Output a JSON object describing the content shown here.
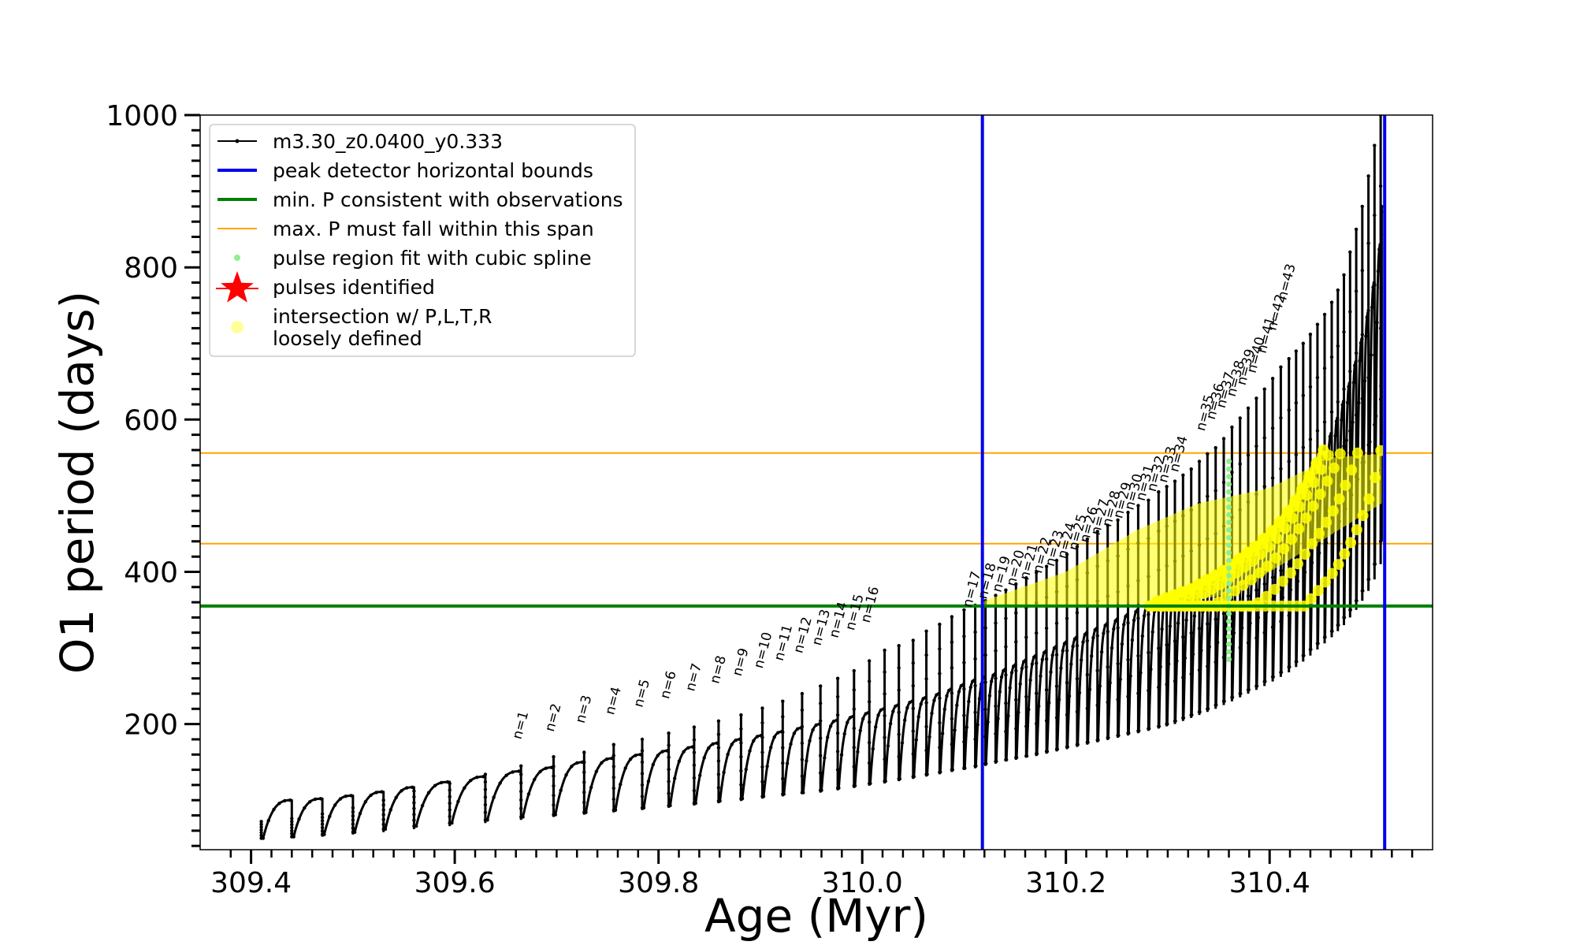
{
  "chart_data": {
    "type": "line",
    "title": "",
    "xlabel": "Age (Myr)",
    "ylabel": "O1 period (days)",
    "xlim": [
      309.35,
      310.56
    ],
    "ylim": [
      35,
      1000
    ],
    "x_ticks": [
      {
        "value": 309.4,
        "label": "309.4"
      },
      {
        "value": 309.6,
        "label": "309.6"
      },
      {
        "value": 309.8,
        "label": "309.8"
      },
      {
        "value": 310.0,
        "label": "310.0"
      },
      {
        "value": 310.2,
        "label": "310.2"
      },
      {
        "value": 310.4,
        "label": "310.4"
      }
    ],
    "y_ticks": [
      {
        "value": 200,
        "label": "200"
      },
      {
        "value": 400,
        "label": "400"
      },
      {
        "value": 600,
        "label": "600"
      },
      {
        "value": 800,
        "label": "800"
      },
      {
        "value": 1000,
        "label": "1000"
      }
    ],
    "grid": false,
    "legend_position": "top-left",
    "colors": {
      "track": "#000000",
      "bounds": "#0000ee",
      "min_period": "#008000",
      "max_span": "#ffa500",
      "spline": "#90ee90",
      "pulses": "#ff0000",
      "intersection": "#ffff00"
    },
    "legend": [
      {
        "label": "m3.30_z0.0400_y0.333",
        "marker": "line-dot",
        "color": "#000000"
      },
      {
        "label": "peak detector horizontal bounds",
        "marker": "line",
        "color": "#0000ee"
      },
      {
        "label": "min. P consistent with observations",
        "marker": "line",
        "color": "#008000"
      },
      {
        "label": "max. P must fall within this span",
        "marker": "thin-line",
        "color": "#ffa500"
      },
      {
        "label": "pulse region fit with cubic spline",
        "marker": "dot",
        "color": "#90ee90"
      },
      {
        "label": "pulses identified",
        "marker": "star",
        "color": "#ff0000"
      },
      {
        "label": "intersection w/ P,L,T,R",
        "label2": "loosely defined",
        "marker": "dot",
        "color": "#ffff99"
      }
    ],
    "vertical_bounds": [
      310.118,
      310.513
    ],
    "min_period_line": 355,
    "max_period_span": [
      437,
      556
    ],
    "track": {
      "name": "m3.30_z0.0400_y0.333",
      "start_age": 309.41,
      "end_age": 310.51,
      "pulse_ages": [
        309.41,
        309.44,
        309.47,
        309.5,
        309.53,
        309.56,
        309.595,
        309.63,
        309.665,
        309.697,
        309.727,
        309.756,
        309.784,
        309.81,
        309.835,
        309.859,
        309.881,
        309.902,
        309.922,
        309.941,
        309.959,
        309.976,
        309.992,
        310.007,
        310.022,
        310.036,
        310.05,
        310.063,
        310.076,
        310.088,
        310.1,
        310.111,
        310.121,
        310.131,
        310.141,
        310.151,
        310.161,
        310.171,
        310.181,
        310.191,
        310.201,
        310.211,
        310.221,
        310.231,
        310.241,
        310.251,
        310.261,
        310.271,
        310.281,
        310.291,
        310.299,
        310.307,
        310.315,
        310.323,
        310.331,
        310.339,
        310.347,
        310.355,
        310.363,
        310.371,
        310.379,
        310.387,
        310.395,
        310.403,
        310.411,
        310.419,
        310.426,
        310.433,
        310.44,
        310.447,
        310.454,
        310.461,
        310.467,
        310.473,
        310.479,
        310.485,
        310.491,
        310.497,
        310.503,
        310.509
      ],
      "pulse_min": [
        50,
        52,
        55,
        58,
        62,
        66,
        70,
        74,
        78,
        81,
        84,
        87,
        90,
        93,
        96,
        99,
        102,
        105,
        108,
        110,
        113,
        116,
        119,
        122,
        125,
        128,
        131,
        134,
        137,
        140,
        142,
        145,
        148,
        151,
        153,
        156,
        158,
        161,
        164,
        167,
        170,
        173,
        176,
        179,
        182,
        185,
        188,
        191,
        194,
        197,
        200,
        204,
        208,
        212,
        216,
        220,
        225,
        230,
        235,
        240,
        245,
        250,
        256,
        262,
        268,
        275,
        282,
        290,
        298,
        306,
        314,
        322,
        330,
        340,
        350,
        362,
        375,
        390,
        410,
        440
      ],
      "pulse_max": [
        100,
        102,
        106,
        111,
        117,
        124,
        131,
        138,
        143,
        150,
        155,
        160,
        165,
        170,
        175,
        180,
        185,
        190,
        195,
        200,
        205,
        210,
        215,
        220,
        225,
        230,
        235,
        240,
        246,
        252,
        258,
        262,
        266,
        272,
        278,
        284,
        290,
        296,
        302,
        308,
        314,
        320,
        326,
        332,
        338,
        344,
        350,
        356,
        362,
        366,
        370,
        374,
        378,
        384,
        390,
        396,
        402,
        410,
        418,
        426,
        434,
        444,
        454,
        466,
        480,
        494,
        510,
        526,
        544,
        562,
        582,
        602,
        624,
        648,
        676,
        706,
        740,
        780,
        830,
        880
      ],
      "spike_max": [
        72,
        76,
        82,
        90,
        100,
        112,
        122,
        134,
        145,
        157,
        163,
        173,
        180,
        188,
        196,
        204,
        212,
        221,
        230,
        240,
        250,
        260,
        270,
        283,
        297,
        303,
        310,
        322,
        331,
        341,
        350,
        356,
        362,
        369,
        376,
        384,
        392,
        399,
        407,
        415,
        423,
        433,
        443,
        453,
        461,
        468,
        478,
        487,
        494,
        505,
        512,
        519,
        527,
        535,
        545,
        555,
        563,
        575,
        590,
        602,
        615,
        628,
        640,
        654,
        669,
        680,
        690,
        700,
        712,
        725,
        738,
        754,
        770,
        790,
        820,
        850,
        880,
        920,
        960,
        1000
      ]
    },
    "pulse_labels": [
      {
        "text": "n=1",
        "age": 309.665,
        "p": 173
      },
      {
        "text": "n=2",
        "age": 309.697,
        "p": 183
      },
      {
        "text": "n=3",
        "age": 309.727,
        "p": 194
      },
      {
        "text": "n=4",
        "age": 309.756,
        "p": 205
      },
      {
        "text": "n=5",
        "age": 309.784,
        "p": 215
      },
      {
        "text": "n=6",
        "age": 309.81,
        "p": 226
      },
      {
        "text": "n=7",
        "age": 309.835,
        "p": 236
      },
      {
        "text": "n=8",
        "age": 309.859,
        "p": 246
      },
      {
        "text": "n=9",
        "age": 309.881,
        "p": 256
      },
      {
        "text": "n=10",
        "age": 309.902,
        "p": 266
      },
      {
        "text": "n=11",
        "age": 309.922,
        "p": 276
      },
      {
        "text": "n=12",
        "age": 309.941,
        "p": 286
      },
      {
        "text": "n=13",
        "age": 309.959,
        "p": 296
      },
      {
        "text": "n=14",
        "age": 309.976,
        "p": 306
      },
      {
        "text": "n=15",
        "age": 309.992,
        "p": 316
      },
      {
        "text": "n=16",
        "age": 310.007,
        "p": 326
      },
      {
        "text": "n=17",
        "age": 310.107,
        "p": 346
      },
      {
        "text": "n=18",
        "age": 310.122,
        "p": 357
      },
      {
        "text": "n=19",
        "age": 310.136,
        "p": 366
      },
      {
        "text": "n=20",
        "age": 310.15,
        "p": 374
      },
      {
        "text": "n=21",
        "age": 310.163,
        "p": 382
      },
      {
        "text": "n=22",
        "age": 310.176,
        "p": 391
      },
      {
        "text": "n=23",
        "age": 310.188,
        "p": 400
      },
      {
        "text": "n=24",
        "age": 310.2,
        "p": 410
      },
      {
        "text": "n=25",
        "age": 310.211,
        "p": 421
      },
      {
        "text": "n=26",
        "age": 310.222,
        "p": 431
      },
      {
        "text": "n=27",
        "age": 310.233,
        "p": 441
      },
      {
        "text": "n=28",
        "age": 310.244,
        "p": 452
      },
      {
        "text": "n=29",
        "age": 310.255,
        "p": 463
      },
      {
        "text": "n=30",
        "age": 310.266,
        "p": 474
      },
      {
        "text": "n=31",
        "age": 310.277,
        "p": 486
      },
      {
        "text": "n=32",
        "age": 310.288,
        "p": 498
      },
      {
        "text": "n=33",
        "age": 310.299,
        "p": 510
      },
      {
        "text": "n=34",
        "age": 310.31,
        "p": 524
      },
      {
        "text": "n=35",
        "age": 310.336,
        "p": 578
      },
      {
        "text": "n=36",
        "age": 310.346,
        "p": 593
      },
      {
        "text": "n=37",
        "age": 310.356,
        "p": 608
      },
      {
        "text": "n=38",
        "age": 310.366,
        "p": 623
      },
      {
        "text": "n=39",
        "age": 310.376,
        "p": 638
      },
      {
        "text": "n=40",
        "age": 310.386,
        "p": 654
      },
      {
        "text": "n=41",
        "age": 310.396,
        "p": 680
      },
      {
        "text": "n=42",
        "age": 310.406,
        "p": 710
      },
      {
        "text": "n=43",
        "age": 310.416,
        "p": 750
      }
    ],
    "intersection_region": {
      "band_top": [
        [
          310.12,
          362
        ],
        [
          310.2,
          400
        ],
        [
          310.27,
          455
        ],
        [
          310.33,
          490
        ],
        [
          310.4,
          510
        ],
        [
          310.46,
          550
        ],
        [
          310.51,
          555
        ]
      ],
      "band_bottom": [
        [
          310.12,
          355
        ],
        [
          310.29,
          358
        ],
        [
          310.35,
          368
        ],
        [
          310.4,
          400
        ],
        [
          310.45,
          440
        ],
        [
          310.51,
          490
        ]
      ]
    },
    "spline_region": {
      "age": 310.36,
      "p_min": 285,
      "p_max": 545
    }
  }
}
